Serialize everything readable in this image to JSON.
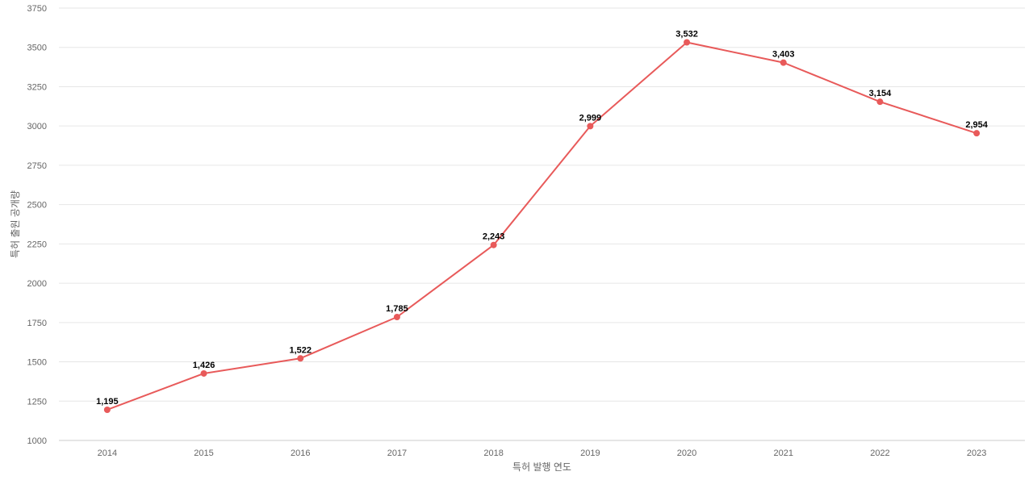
{
  "chart_data": {
    "type": "line",
    "title": "",
    "xlabel": "특허 발행 연도",
    "ylabel": "특허 출원 공개량",
    "categories": [
      "2014",
      "2015",
      "2016",
      "2017",
      "2018",
      "2019",
      "2020",
      "2021",
      "2022",
      "2023"
    ],
    "series": [
      {
        "values": [
          1195,
          1426,
          1522,
          1785,
          2243,
          2999,
          3532,
          3403,
          3154,
          2954
        ],
        "color": "#e85a5a"
      }
    ],
    "data_labels": [
      "1,195",
      "1,426",
      "1,522",
      "1,785",
      "2,243",
      "2,999",
      "3,532",
      "3,403",
      "3,154",
      "2,954"
    ],
    "ylim": [
      1000,
      3750
    ],
    "yticks": [
      "1000",
      "1250",
      "1500",
      "1750",
      "2000",
      "2250",
      "2500",
      "2750",
      "3000",
      "3250",
      "3500",
      "3750"
    ],
    "grid": true,
    "legend": "none"
  }
}
